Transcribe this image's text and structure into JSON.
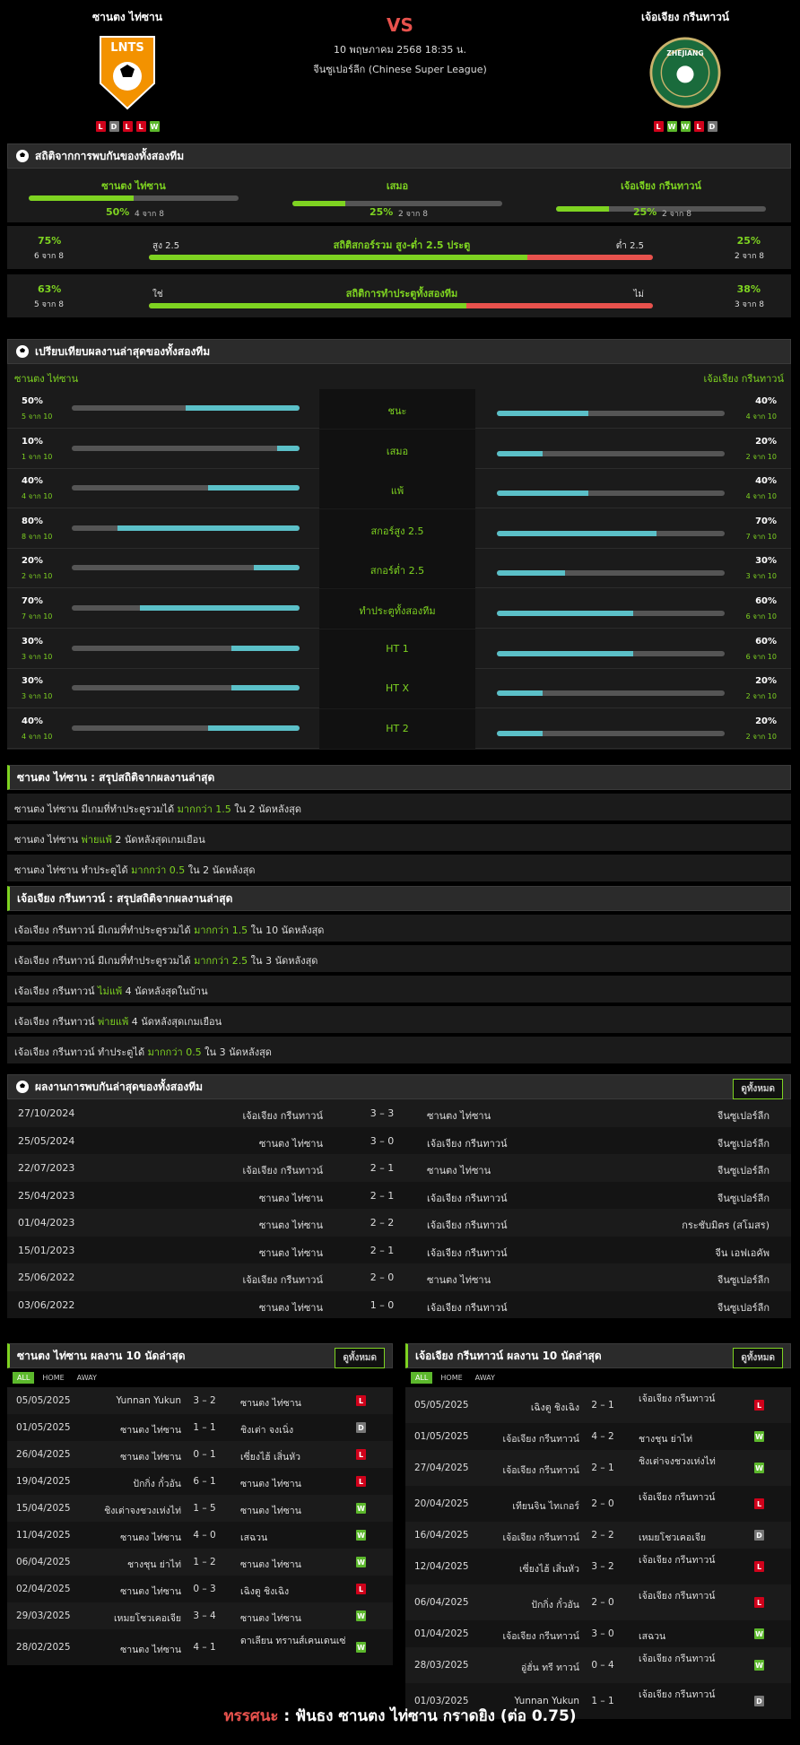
{
  "header": {
    "home": "ซานตง ไท่ซาน",
    "away": "เจ้อเจียง กรีนทาวน์",
    "vs": "VS",
    "datetime": "10 พฤษภาคม 2568 18:35 น.",
    "league": "จีนซูเปอร์ลีก (Chinese Super League)",
    "home_logo_text": "LNTS",
    "away_logo_text": "ZHEJIANG",
    "home_form": [
      "L",
      "D",
      "L",
      "L",
      "W"
    ],
    "away_form": [
      "L",
      "W",
      "W",
      "L",
      "D"
    ]
  },
  "h2h_stats": {
    "title": "สถิติจากการพบกันของทั้งสองทีม",
    "cols": [
      {
        "label": "ซานตง ไท่ซาน",
        "pct": "50%",
        "of": "4 จาก 8",
        "v": 0.5
      },
      {
        "label": "เสมอ",
        "pct": "25%",
        "of": "2 จาก 8",
        "v": 0.25
      },
      {
        "label": "เจ้อเจียง กรีนทาวน์",
        "pct": "25%",
        "of": "2 จาก 8",
        "v": 0.25
      }
    ],
    "ou": {
      "title": "สถิติสกอร์รวม สูง-ต่ำ 2.5 ประตู",
      "left_pct": "75%",
      "left_of": "6 จาก 8",
      "left_lbl": "สูง 2.5",
      "right_lbl": "ต่ำ 2.5",
      "right_pct": "25%",
      "right_of": "2 จาก 8",
      "v": 0.75
    },
    "btts": {
      "title": "สถิติการทำประตูทั้งสองทีม",
      "left_pct": "63%",
      "left_of": "5 จาก 8",
      "left_lbl": "ใช่",
      "right_lbl": "ไม่",
      "right_pct": "38%",
      "right_of": "3 จาก 8",
      "v": 0.63
    }
  },
  "compare": {
    "title": "เปรียบเทียบผลงานล่าสุดของทั้งสองทีม",
    "home": "ซานตง ไท่ซาน",
    "away": "เจ้อเจียง กรีนทาวน์",
    "rows": [
      {
        "label": "ชนะ",
        "hp": "50%",
        "hof": "5 จาก 10",
        "hv": 0.5,
        "ap": "40%",
        "aof": "4 จาก 10",
        "av": 0.4
      },
      {
        "label": "เสมอ",
        "hp": "10%",
        "hof": "1 จาก 10",
        "hv": 0.1,
        "ap": "20%",
        "aof": "2 จาก 10",
        "av": 0.2
      },
      {
        "label": "แพ้",
        "hp": "40%",
        "hof": "4 จาก 10",
        "hv": 0.4,
        "ap": "40%",
        "aof": "4 จาก 10",
        "av": 0.4
      },
      {
        "label": "สกอร์สูง 2.5",
        "hp": "80%",
        "hof": "8 จาก 10",
        "hv": 0.8,
        "ap": "70%",
        "aof": "7 จาก 10",
        "av": 0.7
      },
      {
        "label": "สกอร์ต่ำ 2.5",
        "hp": "20%",
        "hof": "2 จาก 10",
        "hv": 0.2,
        "ap": "30%",
        "aof": "3 จาก 10",
        "av": 0.3
      },
      {
        "label": "ทำประตูทั้งสองทีม",
        "hp": "70%",
        "hof": "7 จาก 10",
        "hv": 0.7,
        "ap": "60%",
        "aof": "6 จาก 10",
        "av": 0.6
      },
      {
        "label": "HT 1",
        "hp": "30%",
        "hof": "3 จาก 10",
        "hv": 0.3,
        "ap": "60%",
        "aof": "6 จาก 10",
        "av": 0.6
      },
      {
        "label": "HT X",
        "hp": "30%",
        "hof": "3 จาก 10",
        "hv": 0.3,
        "ap": "20%",
        "aof": "2 จาก 10",
        "av": 0.2
      },
      {
        "label": "HT 2",
        "hp": "40%",
        "hof": "4 จาก 10",
        "hv": 0.4,
        "ap": "20%",
        "aof": "2 จาก 10",
        "av": 0.2
      }
    ]
  },
  "summary_home": {
    "title": "ซานตง ไท่ซาน : สรุปสถิติจากผลงานล่าสุด",
    "lines": [
      [
        "ซานตง ไท่ซาน  มีเกมที่ทำประตูรวมได้ ",
        "มากกว่า 1.5",
        " ใน 2 นัดหลังสุด"
      ],
      [
        "ซานตง ไท่ซาน ",
        "พ่ายแพ้",
        " 2  นัดหลังสุดเกมเยือน"
      ],
      [
        "ซานตง ไท่ซาน  ทำประตูได้ ",
        "มากกว่า 0.5",
        " ใน 2 นัดหลังสุด"
      ]
    ]
  },
  "summary_away": {
    "title": "เจ้อเจียง กรีนทาวน์ : สรุปสถิติจากผลงานล่าสุด",
    "lines": [
      [
        "เจ้อเจียง กรีนทาวน์  มีเกมที่ทำประตูรวมได้ ",
        "มากกว่า 1.5",
        " ใน 10 นัดหลังสุด"
      ],
      [
        "เจ้อเจียง กรีนทาวน์  มีเกมที่ทำประตูรวมได้ ",
        "มากกว่า 2.5",
        " ใน 3 นัดหลังสุด"
      ],
      [
        "เจ้อเจียง กรีนทาวน์ ",
        "ไม่แพ้",
        " 4  นัดหลังสุดในบ้าน"
      ],
      [
        "เจ้อเจียง กรีนทาวน์ ",
        "พ่ายแพ้",
        " 4  นัดหลังสุดเกมเยือน"
      ],
      [
        "เจ้อเจียง กรีนทาวน์  ทำประตูได้ ",
        "มากกว่า 0.5",
        " ใน 3 นัดหลังสุด"
      ]
    ]
  },
  "h2h_results": {
    "title": "ผลงานการพบกันล่าสุดของทั้งสองทีม",
    "btn": "ดูทั้งหมด",
    "rows": [
      [
        "27/10/2024",
        "เจ้อเจียง กรีนทาวน์",
        "3 – 3",
        "ซานตง ไท่ซาน",
        "จีนซูเปอร์ลีก"
      ],
      [
        "25/05/2024",
        "ซานตง ไท่ซาน",
        "3 – 0",
        "เจ้อเจียง กรีนทาวน์",
        "จีนซูเปอร์ลีก"
      ],
      [
        "22/07/2023",
        "เจ้อเจียง กรีนทาวน์",
        "2 – 1",
        "ซานตง ไท่ซาน",
        "จีนซูเปอร์ลีก"
      ],
      [
        "25/04/2023",
        "ซานตง ไท่ซาน",
        "2 – 1",
        "เจ้อเจียง กรีนทาวน์",
        "จีนซูเปอร์ลีก"
      ],
      [
        "01/04/2023",
        "ซานตง ไท่ซาน",
        "2 – 2",
        "เจ้อเจียง กรีนทาวน์",
        "กระชับมิตร (สโมสร)"
      ],
      [
        "15/01/2023",
        "ซานตง ไท่ซาน",
        "2 – 1",
        "เจ้อเจียง กรีนทาวน์",
        "จีน เอฟเอคัพ"
      ],
      [
        "25/06/2022",
        "เจ้อเจียง กรีนทาวน์",
        "2 – 0",
        "ซานตง ไท่ซาน",
        "จีนซูเปอร์ลีก"
      ],
      [
        "03/06/2022",
        "ซานตง ไท่ซาน",
        "1 – 0",
        "เจ้อเจียง กรีนทาวน์",
        "จีนซูเปอร์ลีก"
      ]
    ]
  },
  "tabs": [
    "ALL",
    "HOME",
    "AWAY"
  ],
  "last10_home": {
    "title": "ซานตง ไท่ซาน ผลงาน 10 นัดล่าสุด",
    "btn": "ดูทั้งหมด",
    "rows": [
      [
        "05/05/2025",
        "Yunnan Yukun",
        "3 – 2",
        "ซานตง ไท่ซาน",
        "L"
      ],
      [
        "01/05/2025",
        "ซานตง ไท่ซาน",
        "1 – 1",
        "ชิงเต่า จงเนิ่ง",
        "D"
      ],
      [
        "26/04/2025",
        "ซานตง ไท่ซาน",
        "0 – 1",
        "เซี่ยงไฮ้ เสิ่นหัว",
        "L"
      ],
      [
        "19/04/2025",
        "ปักกิ่ง กั๋วอัน",
        "6 – 1",
        "ซานตง ไท่ซาน",
        "L"
      ],
      [
        "15/04/2025",
        "ชิงเต่าจงชวงเห่งไท่",
        "1 – 5",
        "ซานตง ไท่ซาน",
        "W"
      ],
      [
        "11/04/2025",
        "ซานตง ไท่ซาน",
        "4 – 0",
        "เสฉวน",
        "W"
      ],
      [
        "06/04/2025",
        "ชางชุน ย่าไท่",
        "1 – 2",
        "ซานตง ไท่ซาน",
        "W"
      ],
      [
        "02/04/2025",
        "ซานตง ไท่ซาน",
        "0 – 3",
        "เฉิงตู ชิงเฉิง",
        "L"
      ],
      [
        "29/03/2025",
        "เหมยโชวเคอเจีย",
        "3 – 4",
        "ซานตง ไท่ซาน",
        "W"
      ],
      [
        "28/02/2025",
        "ซานตง ไท่ซาน",
        "4 – 1",
        "ดาเลียน ทรานส์เคนเดนเซ่",
        "W"
      ]
    ]
  },
  "last10_away": {
    "title": "เจ้อเจียง กรีนทาวน์ ผลงาน 10 นัดล่าสุด",
    "btn": "ดูทั้งหมด",
    "rows": [
      [
        "05/05/2025",
        "เฉิงตู ชิงเฉิง",
        "2 – 1",
        "เจ้อเจียง กรีนทาวน์",
        "L"
      ],
      [
        "01/05/2025",
        "เจ้อเจียง กรีนทาวน์",
        "4 – 2",
        "ชางชุน ย่าไท่",
        "W"
      ],
      [
        "27/04/2025",
        "เจ้อเจียง กรีนทาวน์",
        "2 – 1",
        "ชิงเต่าจงชวงเห่งไท่",
        "W"
      ],
      [
        "20/04/2025",
        "เทียนจิน ไทเกอร์",
        "2 – 0",
        "เจ้อเจียง กรีนทาวน์",
        "L"
      ],
      [
        "16/04/2025",
        "เจ้อเจียง กรีนทาวน์",
        "2 – 2",
        "เหมยโชวเคอเจีย",
        "D"
      ],
      [
        "12/04/2025",
        "เซี่ยงไฮ้ เสิ่นหัว",
        "3 – 2",
        "เจ้อเจียง กรีนทาวน์",
        "L"
      ],
      [
        "06/04/2025",
        "ปักกิ่ง กั๋วอัน",
        "2 – 0",
        "เจ้อเจียง กรีนทาวน์",
        "L"
      ],
      [
        "01/04/2025",
        "เจ้อเจียง กรีนทาวน์",
        "3 – 0",
        "เสฉวน",
        "W"
      ],
      [
        "28/03/2025",
        "อู่ฮั่น ทรี ทาวน์",
        "0 – 4",
        "เจ้อเจียง กรีนทาวน์",
        "W"
      ],
      [
        "01/03/2025",
        "Yunnan Yukun",
        "1 – 1",
        "เจ้อเจียง กรีนทาวน์",
        "D"
      ]
    ]
  },
  "verdict": {
    "label": "ทรรศนะ",
    "colon": " : ",
    "text": "ฟันธง ซานตง ไท่ซาน กราดยิง (ต่อ 0.75)"
  },
  "colors": {
    "accent": "#7ed321",
    "red": "#e8524d",
    "teal": "#5bc0c8"
  },
  "icons": [
    "soccer-ball-icon"
  ]
}
